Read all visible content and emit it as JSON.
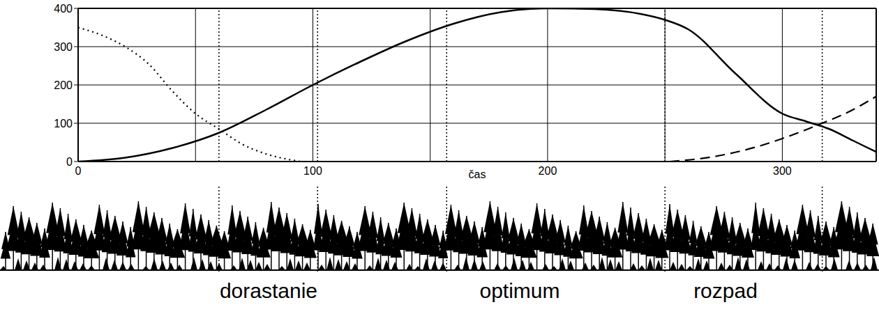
{
  "chart_data": {
    "type": "line",
    "x_label": "čas",
    "xlim": [
      0,
      340
    ],
    "xticks": [
      0,
      100,
      200,
      300
    ],
    "ylim": [
      0,
      400
    ],
    "yticks": [
      0,
      100,
      200,
      300,
      400
    ],
    "grid": true,
    "series": [
      {
        "color": "#000000",
        "line_style": "dotted",
        "marker": "none",
        "x": [
          0,
          10,
          20,
          30,
          40,
          50,
          60,
          70,
          80,
          90,
          95
        ],
        "values": [
          350,
          330,
          300,
          255,
          185,
          125,
          85,
          45,
          20,
          5,
          0
        ]
      },
      {
        "color": "#000000",
        "line_style": "solid",
        "marker": "none",
        "x": [
          0,
          20,
          40,
          60,
          80,
          100,
          120,
          140,
          160,
          180,
          200,
          220,
          240,
          250,
          260,
          280,
          300,
          310,
          320,
          330,
          340
        ],
        "values": [
          0,
          10,
          35,
          75,
          135,
          200,
          260,
          315,
          360,
          390,
          400,
          398,
          385,
          370,
          345,
          230,
          125,
          105,
          85,
          55,
          25
        ]
      },
      {
        "color": "#000000",
        "line_style": "dashed",
        "marker": "none",
        "x": [
          252,
          270,
          290,
          300,
          315,
          330,
          340
        ],
        "values": [
          0,
          12,
          40,
          60,
          95,
          135,
          170
        ]
      }
    ],
    "phase_boundaries_x": [
      60,
      102,
      157,
      250,
      317
    ],
    "stage_labels": [
      "dorastanie",
      "optimum",
      "rozpad"
    ]
  }
}
